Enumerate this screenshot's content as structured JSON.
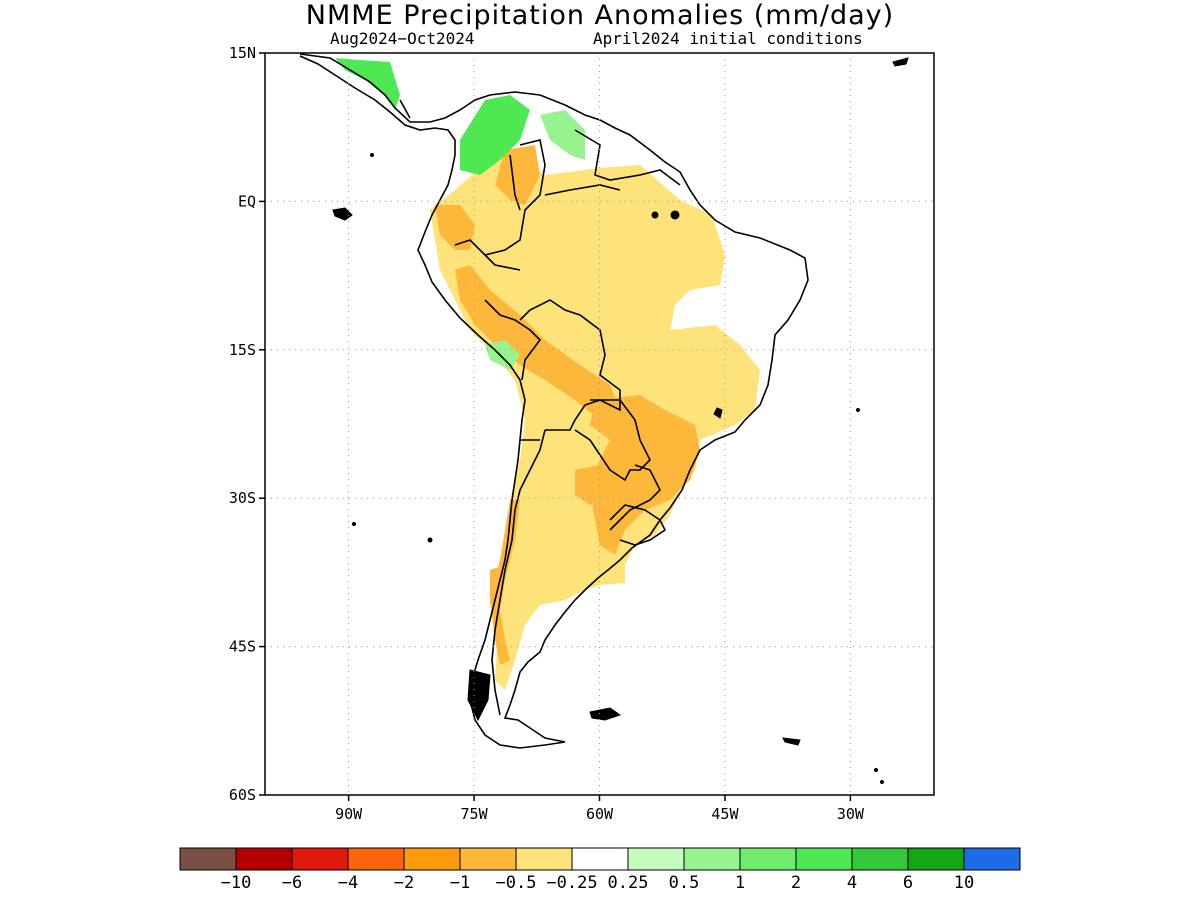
{
  "header": {
    "title": "NMME Precipitation Anomalies (mm/day)",
    "period": "Aug2024−Oct2024",
    "initial": "April2024 initial conditions"
  },
  "map": {
    "lon_range": [
      -100,
      -20
    ],
    "lat_range": [
      -60,
      15
    ],
    "lat_labels": [
      "15N",
      "EQ",
      "15S",
      "30S",
      "45S",
      "60S"
    ],
    "lat_values": [
      15,
      0,
      -15,
      -30,
      -45,
      -60
    ],
    "lon_labels": [
      "90W",
      "75W",
      "60W",
      "45W",
      "30W"
    ],
    "lon_values": [
      -90,
      -75,
      -60,
      -45,
      -30
    ],
    "grid": true
  },
  "colorbar": {
    "labels": [
      "−10",
      "−6",
      "−4",
      "−2",
      "−1",
      "−0.5",
      "−0.25",
      "0.25",
      "0.5",
      "1",
      "2",
      "4",
      "6",
      "10"
    ],
    "colors": [
      "#7a5044",
      "#b50000",
      "#e01a0a",
      "#fb6408",
      "#fd9b0d",
      "#fdb73a",
      "#fee27a",
      "#ffffff",
      "#c6fbbf",
      "#97f38f",
      "#72ec6d",
      "#4de852",
      "#36c83c",
      "#14a414",
      "#1e6be8"
    ]
  }
}
